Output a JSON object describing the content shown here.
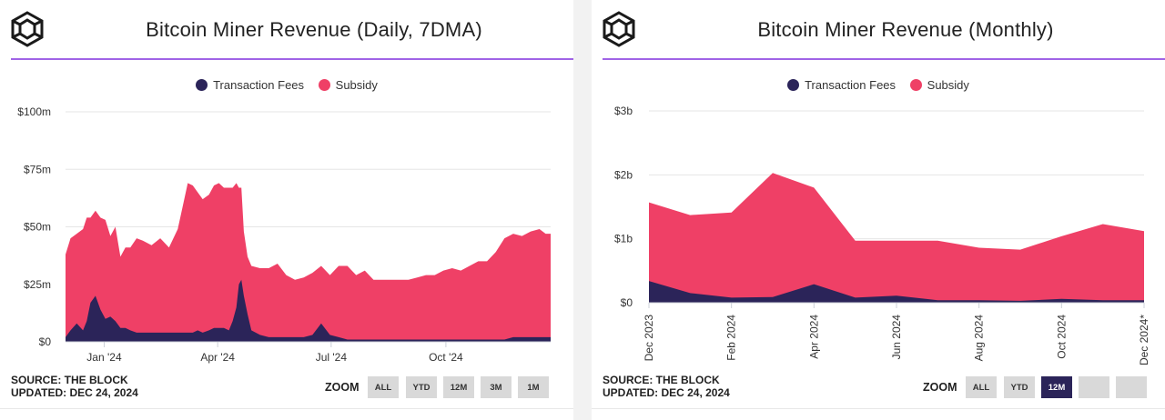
{
  "colors": {
    "fees": "#2b2459",
    "subsidy": "#ef4066",
    "accent": "#a064e6",
    "grid": "#e6e6e6",
    "axis": "#333333"
  },
  "left": {
    "title": "Bitcoin Miner Revenue (Daily, 7DMA)",
    "legend": [
      {
        "label": "Transaction Fees",
        "color": "#2b2459"
      },
      {
        "label": "Subsidy",
        "color": "#ef4066"
      }
    ],
    "source_line1": "SOURCE: THE BLOCK",
    "source_line2": "UPDATED: DEC 24, 2024",
    "zoom_label": "ZOOM",
    "zoom_buttons": [
      "ALL",
      "YTD",
      "12M",
      "3M",
      "1M"
    ]
  },
  "right": {
    "title": "Bitcoin Miner Revenue (Monthly)",
    "legend": [
      {
        "label": "Transaction Fees",
        "color": "#2b2459"
      },
      {
        "label": "Subsidy",
        "color": "#ef4066"
      }
    ],
    "source_line1": "SOURCE: THE BLOCK",
    "source_line2": "UPDATED: DEC 24, 2024",
    "zoom_label": "ZOOM",
    "zoom_buttons": [
      "ALL",
      "YTD",
      "12M",
      "",
      ""
    ],
    "zoom_active": 2
  },
  "chart_data": [
    {
      "type": "area",
      "stacked": true,
      "title": "Bitcoin Miner Revenue (Daily, 7DMA)",
      "unit": "USD millions",
      "y_ticks": [
        0,
        25,
        50,
        75,
        100
      ],
      "y_tick_labels": [
        "$0",
        "$25m",
        "$50m",
        "$75m",
        "$100m"
      ],
      "ylim": [
        0,
        100
      ],
      "x_ticks": [
        {
          "label": "Jan '24",
          "x": "2024-01-01"
        },
        {
          "label": "Apr '24",
          "x": "2024-04-01"
        },
        {
          "label": "Jul '24",
          "x": "2024-07-01"
        },
        {
          "label": "Oct '24",
          "x": "2024-10-01"
        }
      ],
      "xlim": [
        "2023-12-01",
        "2024-12-24"
      ],
      "grid": true,
      "legend_position": "top-center",
      "x": [
        "2023-12-01",
        "2023-12-05",
        "2023-12-10",
        "2023-12-15",
        "2023-12-18",
        "2023-12-21",
        "2023-12-25",
        "2023-12-29",
        "2024-01-02",
        "2024-01-06",
        "2024-01-10",
        "2024-01-14",
        "2024-01-18",
        "2024-01-22",
        "2024-01-27",
        "2024-02-01",
        "2024-02-08",
        "2024-02-15",
        "2024-02-22",
        "2024-02-29",
        "2024-03-04",
        "2024-03-08",
        "2024-03-12",
        "2024-03-16",
        "2024-03-20",
        "2024-03-25",
        "2024-03-29",
        "2024-04-02",
        "2024-04-06",
        "2024-04-10",
        "2024-04-13",
        "2024-04-16",
        "2024-04-18",
        "2024-04-20",
        "2024-04-22",
        "2024-04-25",
        "2024-04-28",
        "2024-05-05",
        "2024-05-12",
        "2024-05-19",
        "2024-05-26",
        "2024-06-02",
        "2024-06-09",
        "2024-06-16",
        "2024-06-23",
        "2024-06-30",
        "2024-07-07",
        "2024-07-14",
        "2024-07-21",
        "2024-07-28",
        "2024-08-04",
        "2024-08-11",
        "2024-08-18",
        "2024-08-25",
        "2024-09-01",
        "2024-09-08",
        "2024-09-15",
        "2024-09-22",
        "2024-09-29",
        "2024-10-06",
        "2024-10-13",
        "2024-10-20",
        "2024-10-27",
        "2024-11-03",
        "2024-11-10",
        "2024-11-17",
        "2024-11-24",
        "2024-12-01",
        "2024-12-08",
        "2024-12-15",
        "2024-12-20",
        "2024-12-24"
      ],
      "series": [
        {
          "name": "Transaction Fees",
          "values": [
            2,
            5,
            8,
            5,
            9,
            17,
            20,
            14,
            10,
            11,
            9,
            6,
            6,
            5,
            4,
            4,
            4,
            4,
            4,
            4,
            4,
            4,
            4,
            5,
            4,
            5,
            6,
            6,
            6,
            5,
            9,
            15,
            25,
            27,
            20,
            12,
            5,
            3,
            2,
            2,
            2,
            2,
            2,
            3,
            8,
            3,
            2,
            1,
            1,
            1,
            1,
            1,
            1,
            1,
            1,
            1,
            1,
            1,
            1,
            1,
            1,
            1,
            1,
            1,
            1,
            1,
            2,
            2,
            2,
            2,
            2,
            2
          ]
        },
        {
          "name": "Subsidy",
          "values": [
            36,
            40,
            39,
            44,
            45,
            37,
            37,
            40,
            43,
            35,
            41,
            31,
            35,
            36,
            41,
            40,
            38,
            41,
            37,
            45,
            55,
            65,
            64,
            60,
            58,
            59,
            62,
            63,
            61,
            62,
            58,
            54,
            42,
            40,
            28,
            25,
            28,
            29,
            30,
            32,
            27,
            25,
            26,
            27,
            25,
            26,
            31,
            32,
            28,
            30,
            26,
            26,
            26,
            26,
            26,
            27,
            28,
            28,
            30,
            31,
            30,
            32,
            34,
            34,
            38,
            44,
            45,
            44,
            46,
            47,
            45,
            45
          ]
        }
      ]
    },
    {
      "type": "area",
      "stacked": true,
      "title": "Bitcoin Miner Revenue (Monthly)",
      "unit": "USD billions",
      "y_ticks": [
        0,
        1,
        2,
        3
      ],
      "y_tick_labels": [
        "$0",
        "$1b",
        "$2b",
        "$3b"
      ],
      "ylim": [
        0,
        3
      ],
      "x_tick_labels": [
        "Dec 2023",
        "Feb 2024",
        "Apr 2024",
        "Jun 2024",
        "Aug 2024",
        "Oct 2024",
        "Dec 2024*"
      ],
      "grid": true,
      "legend_position": "top-center",
      "x": [
        "Dec 2023",
        "Jan 2024",
        "Feb 2024",
        "Mar 2024",
        "Apr 2024",
        "May 2024",
        "Jun 2024",
        "Jul 2024",
        "Aug 2024",
        "Sep 2024",
        "Oct 2024",
        "Nov 2024",
        "Dec 2024*"
      ],
      "series": [
        {
          "name": "Transaction Fees",
          "values": [
            0.34,
            0.15,
            0.08,
            0.09,
            0.29,
            0.08,
            0.11,
            0.04,
            0.04,
            0.03,
            0.06,
            0.04,
            0.04
          ]
        },
        {
          "name": "Subsidy",
          "values": [
            1.23,
            1.22,
            1.33,
            1.94,
            1.51,
            0.89,
            0.86,
            0.93,
            0.82,
            0.8,
            0.98,
            1.19,
            1.08
          ]
        }
      ]
    }
  ]
}
